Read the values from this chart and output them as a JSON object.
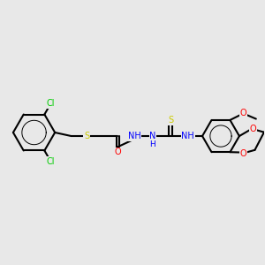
{
  "bg_color": "#e8e8e8",
  "bond_color": "#000000",
  "line_width": 1.5,
  "atom_colors": {
    "Cl": "#00cc00",
    "S": "#cccc00",
    "O": "#ff0000",
    "N": "#0000ff",
    "C": "#000000",
    "H": "#808080"
  },
  "font_size": 7.0,
  "fig_size": [
    3.0,
    3.0
  ],
  "dpi": 100
}
